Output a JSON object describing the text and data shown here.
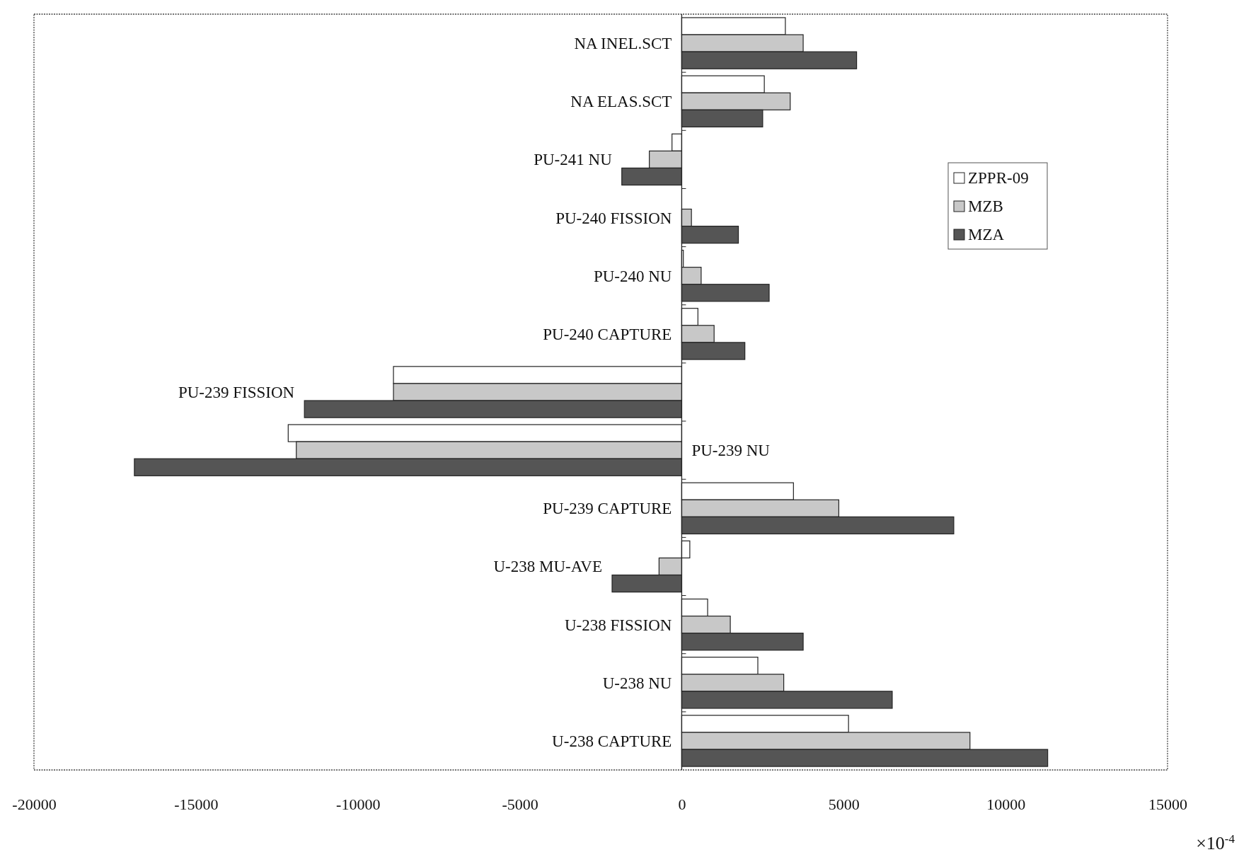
{
  "chart_data": {
    "type": "bar",
    "orientation": "horizontal",
    "categories": [
      "NA  INEL.SCT",
      "NA  ELAS.SCT",
      "PU-241 NU",
      "PU-240 FISSION",
      "PU-240 NU",
      "PU-240 CAPTURE",
      "PU-239 FISSION",
      "PU-239 NU",
      "PU-239 CAPTURE",
      "U-238 MU-AVE",
      "U-238 FISSION",
      "U-238 NU",
      "U-238 CAPTURE"
    ],
    "series": [
      {
        "name": "ZPPR-09",
        "color": "#ffffff",
        "values": [
          3200,
          2550,
          -300,
          0,
          50,
          500,
          -8900,
          -12150,
          3450,
          250,
          800,
          2350,
          5150
        ]
      },
      {
        "name": "MZB",
        "color": "#c8c8c8",
        "values": [
          3750,
          3350,
          -1000,
          300,
          600,
          1000,
          -8900,
          -11900,
          4850,
          -700,
          1500,
          3150,
          8900
        ]
      },
      {
        "name": "MZA",
        "color": "#555555",
        "values": [
          5400,
          2500,
          -1850,
          1750,
          2700,
          1950,
          -11650,
          -16900,
          8400,
          -2150,
          3750,
          6500,
          11300
        ]
      }
    ],
    "xlim": [
      -20000,
      15000
    ],
    "xticks": [
      -20000,
      -15000,
      -10000,
      -5000,
      0,
      5000,
      10000,
      15000
    ],
    "legend": "top right",
    "annotations": [
      "×10$^{-4}$"
    ]
  }
}
